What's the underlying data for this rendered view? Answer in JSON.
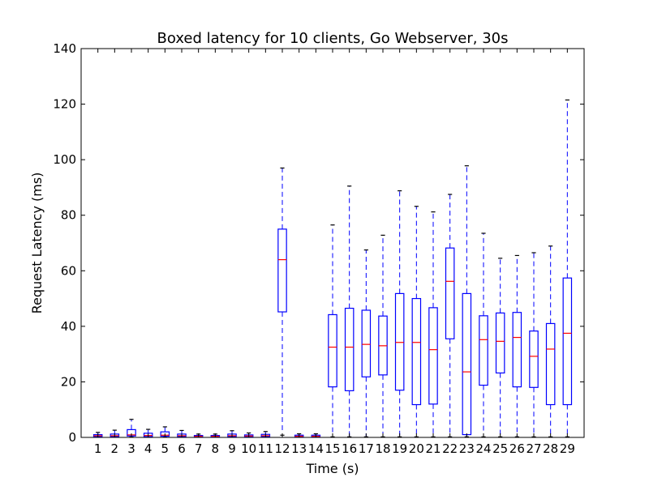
{
  "chart_data": {
    "type": "box",
    "title": "Boxed latency for 10 clients, Go Webserver, 30s",
    "xlabel": "Time (s)",
    "ylabel": "Request Latency (ms)",
    "ylim": [
      0,
      140
    ],
    "yticks": [
      "0",
      "20",
      "40",
      "60",
      "80",
      "100",
      "120",
      "140"
    ],
    "categories": [
      "1",
      "2",
      "3",
      "4",
      "5",
      "6",
      "7",
      "8",
      "9",
      "10",
      "11",
      "12",
      "13",
      "14",
      "15",
      "16",
      "17",
      "18",
      "19",
      "20",
      "21",
      "22",
      "23",
      "24",
      "25",
      "26",
      "27",
      "28",
      "29"
    ],
    "boxes": [
      {
        "min": 0.1,
        "q1": 0.3,
        "median": 0.6,
        "q3": 1.0,
        "max": 1.8
      },
      {
        "min": 0.1,
        "q1": 0.3,
        "median": 0.6,
        "q3": 1.2,
        "max": 2.6
      },
      {
        "min": 0.1,
        "q1": 0.5,
        "median": 0.9,
        "q3": 2.8,
        "max": 6.5
      },
      {
        "min": 0.1,
        "q1": 0.3,
        "median": 0.7,
        "q3": 1.5,
        "max": 2.9
      },
      {
        "min": 0.1,
        "q1": 0.4,
        "median": 0.8,
        "q3": 2.0,
        "max": 3.8
      },
      {
        "min": 0.1,
        "q1": 0.3,
        "median": 0.6,
        "q3": 1.2,
        "max": 2.5
      },
      {
        "min": 0.1,
        "q1": 0.2,
        "median": 0.4,
        "q3": 0.7,
        "max": 1.2
      },
      {
        "min": 0.1,
        "q1": 0.2,
        "median": 0.4,
        "q3": 0.7,
        "max": 1.2
      },
      {
        "min": 0.1,
        "q1": 0.3,
        "median": 0.6,
        "q3": 1.2,
        "max": 2.4
      },
      {
        "min": 0.1,
        "q1": 0.2,
        "median": 0.5,
        "q3": 0.9,
        "max": 1.6
      },
      {
        "min": 0.1,
        "q1": 0.3,
        "median": 0.6,
        "q3": 1.1,
        "max": 2.1
      },
      {
        "min": 0.8,
        "q1": 45.2,
        "median": 64.0,
        "q3": 75.0,
        "max": 97.0
      },
      {
        "min": 0.1,
        "q1": 0.2,
        "median": 0.4,
        "q3": 0.8,
        "max": 1.3
      },
      {
        "min": 0.1,
        "q1": 0.2,
        "median": 0.4,
        "q3": 0.8,
        "max": 1.3
      },
      {
        "min": 0.2,
        "q1": 18.2,
        "median": 32.5,
        "q3": 44.2,
        "max": 76.5
      },
      {
        "min": 0.2,
        "q1": 16.8,
        "median": 32.5,
        "q3": 46.5,
        "max": 90.5
      },
      {
        "min": 0.2,
        "q1": 21.8,
        "median": 33.5,
        "q3": 45.8,
        "max": 67.5
      },
      {
        "min": 0.2,
        "q1": 22.5,
        "median": 33.0,
        "q3": 43.7,
        "max": 72.8
      },
      {
        "min": 0.2,
        "q1": 17.0,
        "median": 34.2,
        "q3": 51.8,
        "max": 88.8
      },
      {
        "min": 0.2,
        "q1": 11.8,
        "median": 34.2,
        "q3": 50.0,
        "max": 83.2
      },
      {
        "min": 0.2,
        "q1": 12.0,
        "median": 31.6,
        "q3": 46.7,
        "max": 81.2
      },
      {
        "min": 0.2,
        "q1": 35.5,
        "median": 56.2,
        "q3": 68.2,
        "max": 87.5
      },
      {
        "min": 0.2,
        "q1": 1.0,
        "median": 23.6,
        "q3": 51.8,
        "max": 97.8
      },
      {
        "min": 0.2,
        "q1": 18.8,
        "median": 35.2,
        "q3": 43.8,
        "max": 73.5
      },
      {
        "min": 0.2,
        "q1": 23.2,
        "median": 34.6,
        "q3": 44.8,
        "max": 64.5
      },
      {
        "min": 0.2,
        "q1": 18.2,
        "median": 36.0,
        "q3": 45.0,
        "max": 65.5
      },
      {
        "min": 0.2,
        "q1": 18.0,
        "median": 29.2,
        "q3": 38.3,
        "max": 66.5
      },
      {
        "min": 0.2,
        "q1": 11.8,
        "median": 31.8,
        "q3": 41.0,
        "max": 68.9
      },
      {
        "min": 0.2,
        "q1": 11.8,
        "median": 37.5,
        "q3": 57.4,
        "max": 121.5
      }
    ],
    "colors": {
      "box": "#0000ff",
      "median": "#ff0000",
      "whisker": "#0000ff",
      "cap": "#000000"
    }
  }
}
